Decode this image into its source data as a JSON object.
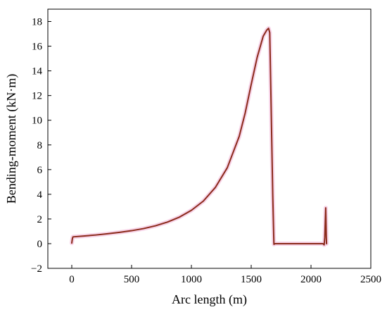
{
  "chart_data": {
    "type": "line",
    "title": "",
    "xlabel": "Arc length (m)",
    "ylabel": "Bending-moment (kN·m)",
    "xlim": [
      -200,
      2500
    ],
    "ylim": [
      -2,
      19
    ],
    "xticks": [
      0,
      500,
      1000,
      1500,
      2000,
      2500
    ],
    "yticks": [
      -2,
      0,
      2,
      4,
      6,
      8,
      10,
      12,
      14,
      16,
      18
    ],
    "grid": false,
    "legend": "none",
    "series": [
      {
        "color": "#8b2a1a",
        "glow_color": "#f2b8d8",
        "x": [
          0,
          5,
          10,
          100,
          200,
          300,
          400,
          500,
          600,
          700,
          800,
          900,
          1000,
          1100,
          1200,
          1300,
          1400,
          1450,
          1500,
          1550,
          1600,
          1630,
          1645,
          1655,
          1665,
          1680,
          1690,
          1700,
          1750,
          1800,
          1900,
          2000,
          2100,
          2110,
          2115,
          2120,
          2123,
          2125,
          2128,
          2130
        ],
        "y": [
          0.05,
          0.4,
          0.55,
          0.62,
          0.7,
          0.8,
          0.92,
          1.05,
          1.22,
          1.45,
          1.75,
          2.15,
          2.7,
          3.45,
          4.55,
          6.15,
          8.7,
          10.6,
          12.9,
          15.1,
          16.8,
          17.3,
          17.45,
          17.1,
          12.0,
          4.0,
          -0.05,
          0.0,
          0.0,
          0.0,
          0.0,
          0.0,
          0.0,
          -0.1,
          0.5,
          2.0,
          2.9,
          2.0,
          0.5,
          0.0
        ]
      }
    ]
  }
}
